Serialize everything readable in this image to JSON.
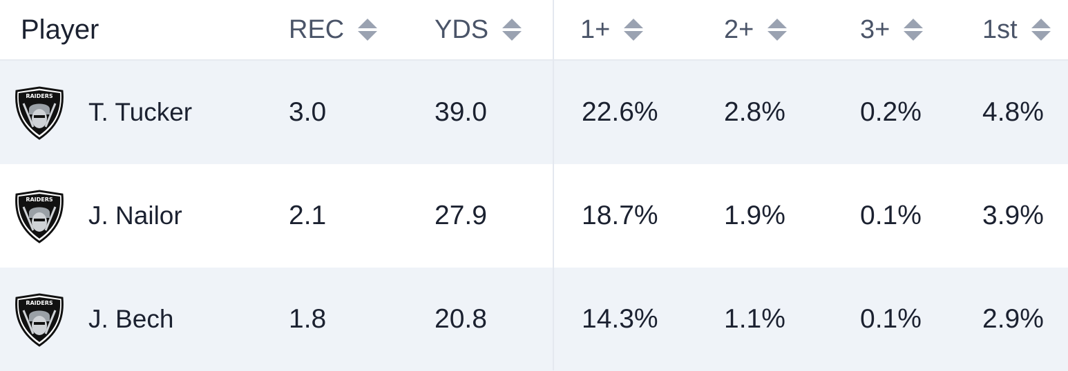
{
  "columns": {
    "player": "Player",
    "rec": "REC",
    "yds": "YDS",
    "td1": "1+",
    "td2": "2+",
    "td3": "3+",
    "first": "1st"
  },
  "logo_text": "RAIDERS",
  "rows": [
    {
      "player": "T. Tucker",
      "rec": "3.0",
      "yds": "39.0",
      "td1": "22.6%",
      "td2": "2.8%",
      "td3": "0.2%",
      "first": "4.8%"
    },
    {
      "player": "J. Nailor",
      "rec": "2.1",
      "yds": "27.9",
      "td1": "18.7%",
      "td2": "1.9%",
      "td3": "0.1%",
      "first": "3.9%"
    },
    {
      "player": "J. Bech",
      "rec": "1.8",
      "yds": "20.8",
      "td1": "14.3%",
      "td2": "1.1%",
      "td3": "0.1%",
      "first": "2.9%"
    }
  ],
  "colors": {
    "row_shade": "#eff3f8",
    "header_text": "#4a5468",
    "sort_icon": "#9aa2b1"
  }
}
